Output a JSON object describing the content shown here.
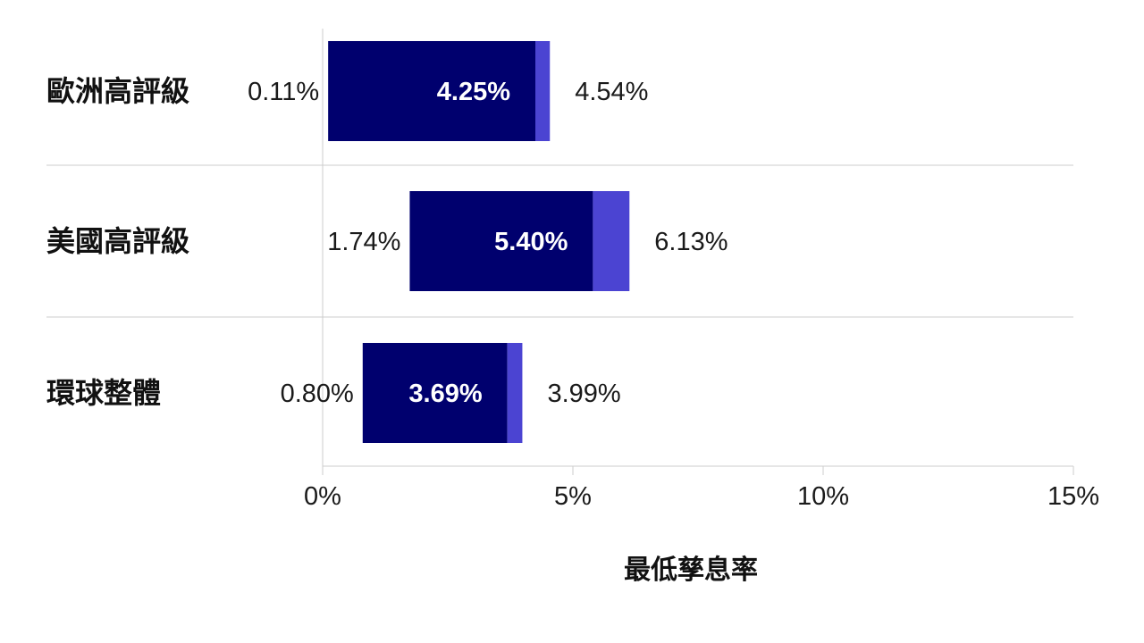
{
  "chart_data": {
    "type": "bar",
    "orientation": "horizontal",
    "stacked": true,
    "categories": [
      "歐洲高評級",
      "美國高評級",
      "環球整體"
    ],
    "series": [
      {
        "values": [
          0.11,
          1.74,
          0.8
        ],
        "labels": [
          "0.11%",
          "1.74%",
          "0.80%"
        ]
      },
      {
        "values": [
          4.25,
          5.4,
          3.69
        ],
        "labels": [
          "4.25%",
          "5.40%",
          "3.69%"
        ]
      },
      {
        "values": [
          4.54,
          6.13,
          3.99
        ],
        "labels": [
          "4.54%",
          "6.13%",
          "3.99%"
        ]
      }
    ],
    "xlabel": "最低孳息率",
    "xlim": [
      0,
      15
    ],
    "xticks": [
      0,
      5,
      10,
      15
    ],
    "xtick_labels": [
      "0%",
      "5%",
      "10%",
      "15%"
    ],
    "grid": "horizontal separators between rows",
    "colors": {
      "main": "#00006e",
      "tip": "#4b44d2",
      "grid": "#cccccc"
    }
  }
}
